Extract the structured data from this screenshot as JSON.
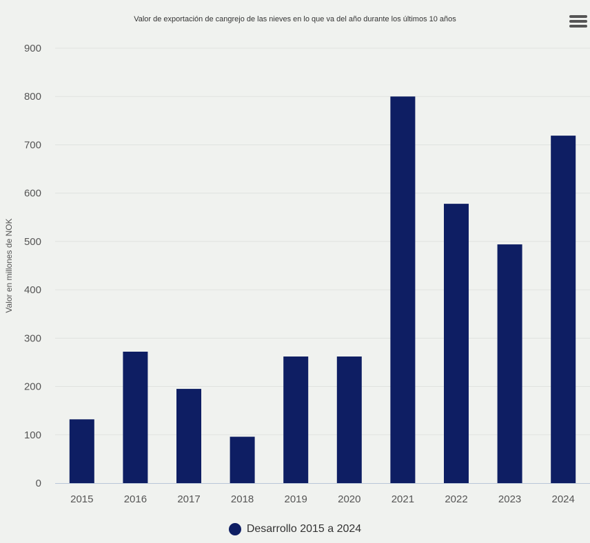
{
  "chart_data": {
    "type": "bar",
    "title": "Valor de exportación de cangrejo de las nieves en lo que va del año durante los últimos 10 años",
    "ylabel": "Valor en millones de NOK",
    "xlabel": "",
    "categories": [
      "2015",
      "2016",
      "2017",
      "2018",
      "2019",
      "2020",
      "2021",
      "2022",
      "2023",
      "2024"
    ],
    "series": [
      {
        "name": "Desarrollo 2015 a 2024",
        "color": "#0e1e63",
        "values": [
          132,
          272,
          195,
          96,
          262,
          262,
          800,
          578,
          494,
          719
        ]
      }
    ],
    "ylim": [
      0,
      900
    ],
    "yticks": [
      0,
      100,
      200,
      300,
      400,
      500,
      600,
      700,
      800,
      900
    ],
    "grid": true,
    "legend": "bottom-center"
  },
  "ui": {
    "menu_icon": "hamburger-menu-icon"
  }
}
